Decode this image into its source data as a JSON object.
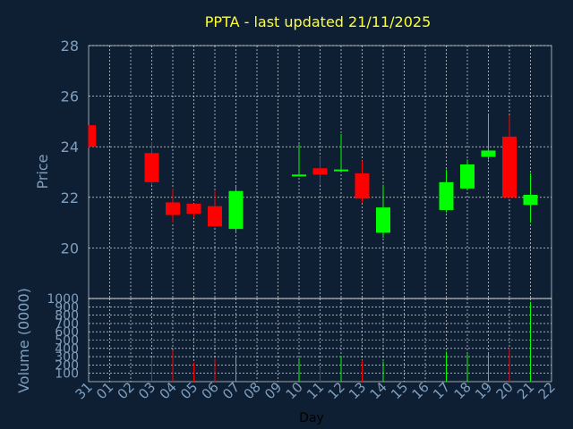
{
  "chart_data": {
    "type": "candlestick",
    "title": "PPTA - last updated 21/11/2025",
    "price_ylabel": "Price",
    "volume_ylabel": "Volume (0000)",
    "xlabel": "Day",
    "price_ylim": [
      18,
      28
    ],
    "price_ticks": [
      20,
      22,
      24,
      26,
      28
    ],
    "volume_ylim": [
      0,
      1000
    ],
    "volume_ticks": [
      100,
      200,
      300,
      400,
      500,
      600,
      700,
      800,
      900,
      1000
    ],
    "x_ticks": [
      "31",
      "01",
      "02",
      "03",
      "04",
      "05",
      "06",
      "07",
      "08",
      "09",
      "10",
      "11",
      "12",
      "13",
      "14",
      "15",
      "16",
      "17",
      "18",
      "19",
      "20",
      "21",
      "22"
    ],
    "grid": true,
    "colors": {
      "up": "#00ff00",
      "down": "#ff0000",
      "background": "#0f1f33",
      "title": "#ffff33",
      "axis_text": "#7f9fbf"
    },
    "candles": [
      {
        "day": "31",
        "open": 24.85,
        "high": 24.85,
        "low": 23.95,
        "close": 24.0,
        "volume": 0
      },
      {
        "day": "03",
        "open": 23.75,
        "high": 24.2,
        "low": 22.5,
        "close": 22.6,
        "volume": 290
      },
      {
        "day": "04",
        "open": 21.8,
        "high": 22.35,
        "low": 21.0,
        "close": 21.3,
        "volume": 380
      },
      {
        "day": "05",
        "open": 21.75,
        "high": 21.75,
        "low": 21.2,
        "close": 21.35,
        "volume": 230
      },
      {
        "day": "06",
        "open": 21.65,
        "high": 22.25,
        "low": 20.85,
        "close": 20.85,
        "volume": 280
      },
      {
        "day": "07",
        "open": 20.75,
        "high": 22.45,
        "low": 20.6,
        "close": 22.25,
        "volume": 320
      },
      {
        "day": "10",
        "open": 22.85,
        "high": 24.1,
        "low": 22.85,
        "close": 22.9,
        "volume": 280
      },
      {
        "day": "11",
        "open": 23.15,
        "high": 23.6,
        "low": 22.5,
        "close": 22.9,
        "volume": 170
      },
      {
        "day": "12",
        "open": 23.05,
        "high": 24.5,
        "low": 23.05,
        "close": 23.1,
        "volume": 310
      },
      {
        "day": "13",
        "open": 22.95,
        "high": 23.45,
        "low": 21.8,
        "close": 21.95,
        "volume": 260
      },
      {
        "day": "14",
        "open": 20.6,
        "high": 22.5,
        "low": 20.4,
        "close": 21.6,
        "volume": 240
      },
      {
        "day": "17",
        "open": 21.5,
        "high": 23.1,
        "low": 21.4,
        "close": 22.6,
        "volume": 360
      },
      {
        "day": "18",
        "open": 22.35,
        "high": 23.5,
        "low": 22.35,
        "close": 23.3,
        "volume": 330
      },
      {
        "day": "19",
        "open": 23.6,
        "high": 25.25,
        "low": 23.5,
        "close": 23.85,
        "volume": 350
      },
      {
        "day": "20",
        "open": 24.4,
        "high": 25.25,
        "low": 22.0,
        "close": 22.0,
        "volume": 400
      },
      {
        "day": "21",
        "open": 21.7,
        "high": 22.95,
        "low": 21.0,
        "close": 22.1,
        "volume": 960
      }
    ]
  }
}
